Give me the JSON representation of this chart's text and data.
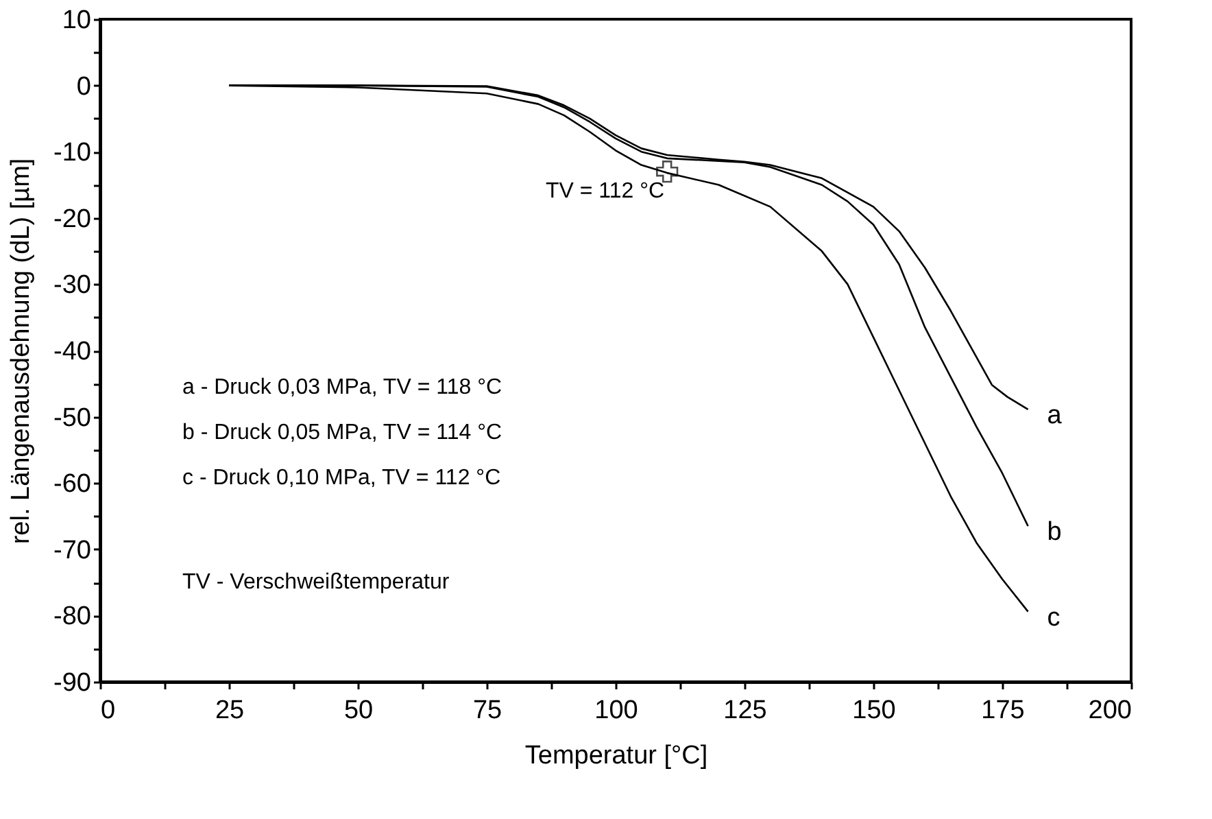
{
  "chart_data": {
    "type": "line",
    "xlabel": "Temperatur     [°C]",
    "ylabel": "rel. Längenausdehnung  (dL)     [µm]",
    "xlim": [
      0,
      200
    ],
    "ylim": [
      -90,
      10
    ],
    "xticks": [
      0,
      {
        "value": 12.5,
        "label": null
      },
      25,
      {
        "value": 37.5,
        "label": null
      },
      50,
      {
        "value": 62.5,
        "label": null
      },
      75,
      {
        "value": 87.5,
        "label": null
      },
      100,
      {
        "value": 112.5,
        "label": null
      },
      125,
      {
        "value": 137.5,
        "label": null
      },
      150,
      {
        "value": 162.5,
        "label": null
      },
      175,
      {
        "value": 187.5,
        "label": null
      },
      200
    ],
    "yticks": [
      -90,
      {
        "value": -85,
        "label": null
      },
      -80,
      {
        "value": -75,
        "label": null
      },
      -70,
      {
        "value": -65,
        "label": null
      },
      -60,
      {
        "value": -55,
        "label": null
      },
      -50,
      {
        "value": -45,
        "label": null
      },
      -40,
      {
        "value": -35,
        "label": null
      },
      -30,
      {
        "value": -25,
        "label": null
      },
      -20,
      {
        "value": -15,
        "label": null
      },
      -10,
      {
        "value": -5,
        "label": null
      },
      0,
      {
        "value": 5,
        "label": null
      },
      10
    ],
    "grid": false,
    "marker": "none",
    "line_style": "solid",
    "series": [
      {
        "name": "a",
        "color": "#000000",
        "x": [
          25,
          50,
          75,
          85,
          90,
          95,
          100,
          105,
          110,
          120,
          125,
          130,
          140,
          150,
          155,
          160,
          165,
          170,
          173,
          176,
          180
        ],
        "values": [
          0,
          0,
          -0.1,
          -1.5,
          -3,
          -5,
          -7.5,
          -9.5,
          -10.5,
          -11.2,
          -11.5,
          -12,
          -14,
          -18.3,
          -22,
          -27.5,
          -34,
          -41,
          -45.2,
          -47,
          -48.9
        ]
      },
      {
        "name": "b",
        "color": "#000000",
        "x": [
          25,
          50,
          75,
          85,
          90,
          95,
          100,
          105,
          110,
          120,
          125,
          130,
          140,
          145,
          150,
          155,
          160,
          165,
          170,
          175,
          180
        ],
        "values": [
          0,
          0,
          -0.2,
          -1.7,
          -3.3,
          -5.5,
          -8,
          -10,
          -11,
          -11.4,
          -11.6,
          -12.3,
          -15,
          -17.5,
          -21,
          -27,
          -36.5,
          -44,
          -51.5,
          -58.5,
          -66.5
        ]
      },
      {
        "name": "c",
        "color": "#000000",
        "x": [
          25,
          50,
          75,
          85,
          90,
          95,
          100,
          105,
          110,
          120,
          130,
          140,
          145,
          150,
          155,
          160,
          165,
          170,
          175,
          180
        ],
        "values": [
          0,
          -0.3,
          -1.2,
          -2.8,
          -4.5,
          -7,
          -9.8,
          -12,
          -13.2,
          -15,
          -18.3,
          -25,
          -30,
          -38,
          -46,
          -54,
          -62,
          -69,
          -74.5,
          -79.4
        ]
      }
    ],
    "annotations": [
      {
        "text": "TV = 112 °C",
        "x": 110,
        "y": -13
      },
      "a -  Druck 0,03 MPa, TV = 118 °C",
      "b -  Druck 0,05 MPa, TV = 114 °C",
      "c -  Druck 0,10 MPa, TV = 112 °C",
      "TV - Verschweißtemperatur"
    ]
  }
}
